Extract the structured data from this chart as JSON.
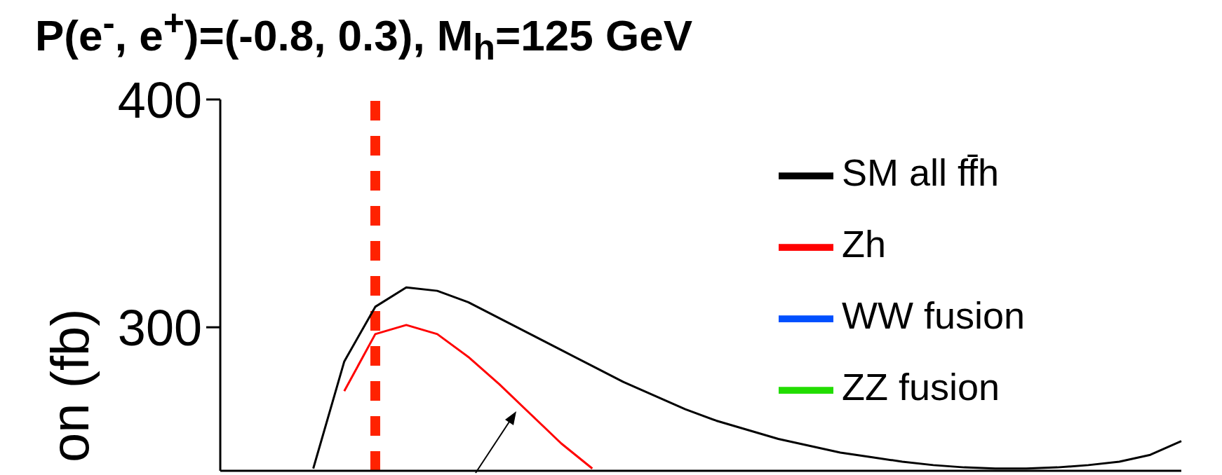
{
  "chart_data": {
    "type": "line",
    "title": "P(e$^{-}$, e$^{+}$)=(-0.8, 0.3), M$_{h}$=125 GeV",
    "ylabel": "on (fb)",
    "categories": [
      null,
      null,
      null,
      null,
      null,
      null,
      null,
      null,
      null,
      null,
      null,
      null,
      null,
      null,
      null,
      null,
      null,
      null,
      null,
      null,
      null,
      null,
      null,
      null,
      null,
      null,
      null,
      null,
      null,
      null,
      null,
      null
    ],
    "series": [
      {
        "name": "SM all ff̄h",
        "color": "#000000",
        "values": [
          null,
          null,
          null,
          238,
          285,
          309,
          317.5,
          316,
          311,
          304,
          297,
          290,
          283,
          276,
          270,
          264,
          259,
          255,
          251,
          248,
          245,
          243,
          241,
          239.5,
          238.5,
          238,
          238,
          238.5,
          239.5,
          241,
          244,
          250
        ]
      },
      {
        "name": "Zh",
        "color": "#ff0000",
        "values": [
          null,
          null,
          null,
          null,
          272,
          297,
          301,
          297,
          287,
          275,
          262,
          249,
          238,
          null,
          null,
          null,
          null,
          null,
          null,
          null,
          null,
          null,
          null,
          null,
          null,
          null,
          null,
          null,
          null,
          null,
          null,
          null
        ]
      },
      {
        "name": "WW fusion",
        "color": "#0050ff",
        "values": [
          null,
          null,
          null,
          null,
          null,
          null,
          null,
          null,
          null,
          null,
          null,
          null,
          null,
          null,
          null,
          null,
          null,
          null,
          null,
          null,
          null,
          null,
          null,
          null,
          null,
          null,
          null,
          null,
          null,
          null,
          null,
          null
        ]
      },
      {
        "name": "ZZ fusion",
        "color": "#22dd00",
        "values": [
          null,
          null,
          null,
          null,
          null,
          null,
          null,
          null,
          null,
          null,
          null,
          null,
          null,
          null,
          null,
          null,
          null,
          null,
          null,
          null,
          null,
          null,
          null,
          null,
          null,
          null,
          null,
          null,
          null,
          null,
          null,
          null
        ]
      }
    ],
    "ylim": [
      237,
      400
    ],
    "yticks": [
      300,
      400
    ],
    "legend": "top right",
    "grid": false,
    "tick_labels": "y",
    "marker": "none",
    "line_style": "solid"
  }
}
